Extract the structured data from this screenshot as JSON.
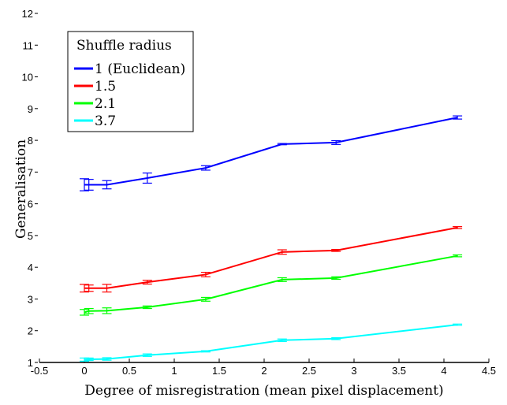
{
  "chart_data": {
    "type": "line",
    "title": "",
    "xlabel": "Degree of misregistration (mean pixel displacement)",
    "ylabel": "Generalisation",
    "xlim": [
      -0.5,
      4.5
    ],
    "ylim": [
      1,
      12
    ],
    "xticks": [
      "-0.5",
      "0",
      "0.5",
      "1",
      "1.5",
      "2",
      "2.5",
      "3",
      "3.5",
      "4",
      "4.5"
    ],
    "yticks": [
      "1",
      "2",
      "3",
      "4",
      "5",
      "6",
      "7",
      "8",
      "9",
      "10",
      "11",
      "12"
    ],
    "grid": false,
    "legend": {
      "title": "Shuffle radius",
      "placement": "top-left"
    },
    "x": [
      0,
      0.05,
      0.25,
      0.7,
      1.35,
      2.2,
      2.8,
      4.15
    ],
    "series": [
      {
        "name": "1 (Euclidean)",
        "color": "#0000ff",
        "values": [
          6.6,
          6.6,
          6.6,
          6.81,
          7.13,
          7.88,
          7.93,
          8.72
        ],
        "errors": [
          0.19,
          0.17,
          0.13,
          0.16,
          0.07,
          0.02,
          0.06,
          0.05
        ]
      },
      {
        "name": "1.5",
        "color": "#ff0000",
        "values": [
          3.34,
          3.34,
          3.34,
          3.53,
          3.77,
          4.48,
          4.53,
          5.25
        ],
        "errors": [
          0.12,
          0.1,
          0.12,
          0.06,
          0.07,
          0.07,
          0.03,
          0.03
        ]
      },
      {
        "name": "2.1",
        "color": "#00ff00",
        "values": [
          2.58,
          2.62,
          2.63,
          2.74,
          2.99,
          3.61,
          3.66,
          4.36
        ],
        "errors": [
          0.09,
          0.08,
          0.09,
          0.04,
          0.06,
          0.06,
          0.04,
          0.03
        ]
      },
      {
        "name": "3.7",
        "color": "#00ffff",
        "values": [
          1.09,
          1.1,
          1.11,
          1.23,
          1.35,
          1.7,
          1.75,
          2.19
        ],
        "errors": [
          0.05,
          0.04,
          0.04,
          0.04,
          0.02,
          0.04,
          0.03,
          0.02
        ]
      }
    ]
  }
}
